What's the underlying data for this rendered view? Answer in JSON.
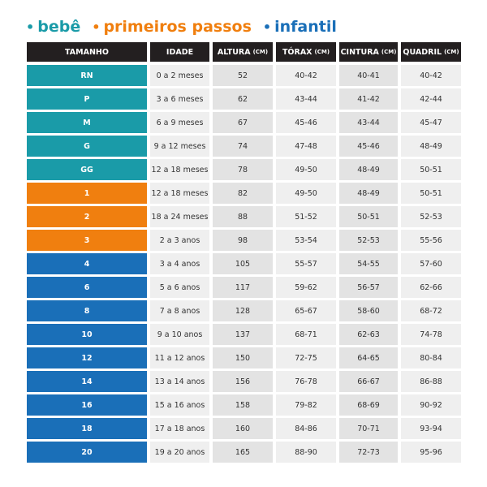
{
  "header": [
    "TAMANHO",
    "IDADE",
    {
      "label": "ALTURA",
      "unit": "(CM)"
    },
    {
      "label": "TÓRAX",
      "unit": "(CM)"
    },
    {
      "label": "CINTURA",
      "unit": "(CM)"
    },
    {
      "label": "QUADRIL",
      "unit": "(CM)"
    }
  ],
  "groups": [
    {
      "label": "bebê",
      "color": "#1a9ba8",
      "rows": [
        [
          "RN",
          "0 a 2 meses",
          "52",
          "40-42",
          "40-41",
          "40-42"
        ],
        [
          "P",
          "3 a 6 meses",
          "62",
          "43-44",
          "41-42",
          "42-44"
        ],
        [
          "M",
          "6 a 9 meses",
          "67",
          "45-46",
          "43-44",
          "45-47"
        ],
        [
          "G",
          "9 a 12 meses",
          "74",
          "47-48",
          "45-46",
          "48-49"
        ],
        [
          "GG",
          "12 a 18 meses",
          "78",
          "49-50",
          "48-49",
          "50-51"
        ]
      ]
    },
    {
      "label": "primeiros passos",
      "color": "#f07f0f",
      "rows": [
        [
          "1",
          "12 a 18 meses",
          "82",
          "49-50",
          "48-49",
          "50-51"
        ],
        [
          "2",
          "18 a 24 meses",
          "88",
          "51-52",
          "50-51",
          "52-53"
        ],
        [
          "3",
          "2 a 3 anos",
          "98",
          "53-54",
          "52-53",
          "55-56"
        ]
      ]
    },
    {
      "label": "infantil",
      "color": "#1a6fb8",
      "rows": [
        [
          "4",
          "3 a 4 anos",
          "105",
          "55-57",
          "54-55",
          "57-60"
        ],
        [
          "6",
          "5 a 6 anos",
          "117",
          "59-62",
          "56-57",
          "62-66"
        ],
        [
          "8",
          "7 a 8 anos",
          "128",
          "65-67",
          "58-60",
          "68-72"
        ],
        [
          "10",
          "9 a 10 anos",
          "137",
          "68-71",
          "62-63",
          "74-78"
        ],
        [
          "12",
          "11 a 12 anos",
          "150",
          "72-75",
          "64-65",
          "80-84"
        ],
        [
          "14",
          "13 a 14 anos",
          "156",
          "76-78",
          "66-67",
          "86-88"
        ],
        [
          "16",
          "15 a 16 anos",
          "158",
          "79-82",
          "68-69",
          "90-92"
        ],
        [
          "18",
          "17 a 18 anos",
          "160",
          "84-86",
          "70-71",
          "93-94"
        ],
        [
          "20",
          "19 a 20 anos",
          "165",
          "88-90",
          "72-73",
          "95-96"
        ]
      ]
    }
  ]
}
